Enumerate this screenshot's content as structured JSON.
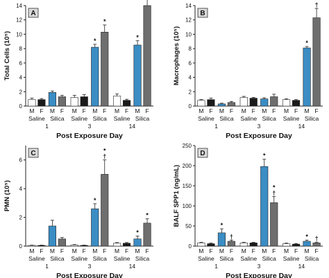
{
  "colors": {
    "saline_m": "#ffffff",
    "saline_f": "#1a1a1a",
    "silica_m": "#3b8dc4",
    "silica_f": "#6e6e6e",
    "axis": "#222222",
    "panel_tag_bg": "#d9d9d9"
  },
  "common": {
    "xlabel": "Post Exposure Day",
    "sex_labels": [
      "M",
      "F",
      "M",
      "F"
    ],
    "group_labels": [
      "Saline",
      "Silica"
    ],
    "days": [
      "1",
      "3",
      "14"
    ]
  },
  "chart_data": [
    {
      "type": "bar",
      "panel": "A",
      "ylabel": "Total Cells (10⁵)",
      "xlabel": "Post Exposure Day",
      "ylim": [
        0,
        14
      ],
      "yticks": [
        "0",
        "2",
        "4",
        "6",
        "8",
        "10",
        "12",
        "14"
      ],
      "categories": [
        "1",
        "3",
        "14"
      ],
      "series": [
        {
          "group": "Saline",
          "sex": "M",
          "values": [
            0.9,
            1.2,
            1.4
          ],
          "errors": [
            0.2,
            0.3,
            0.3
          ],
          "marks": [
            "",
            "",
            ""
          ]
        },
        {
          "group": "Saline",
          "sex": "F",
          "values": [
            0.9,
            1.3,
            0.8
          ],
          "errors": [
            0.15,
            0.3,
            0.15
          ],
          "marks": [
            "",
            "",
            ""
          ]
        },
        {
          "group": "Silica",
          "sex": "M",
          "values": [
            1.9,
            8.2,
            8.5
          ],
          "errors": [
            0.2,
            0.4,
            0.6
          ],
          "marks": [
            "",
            "*",
            "*"
          ]
        },
        {
          "group": "Silica",
          "sex": "F",
          "values": [
            1.3,
            10.3,
            14.0
          ],
          "errors": [
            0.2,
            1.0,
            1.3
          ],
          "marks": [
            "",
            "*",
            "*"
          ]
        }
      ]
    },
    {
      "type": "bar",
      "panel": "B",
      "ylabel": "Macrophages (10⁵)",
      "xlabel": "Post Exposure Day",
      "ylim": [
        0,
        14
      ],
      "yticks": [
        "0",
        "2",
        "4",
        "6",
        "8",
        "10",
        "12",
        "14"
      ],
      "categories": [
        "1",
        "3",
        "14"
      ],
      "series": [
        {
          "group": "Saline",
          "sex": "M",
          "values": [
            0.8,
            1.2,
            0.9
          ],
          "errors": [
            0.1,
            0.15,
            0.1
          ],
          "marks": [
            "",
            "",
            ""
          ]
        },
        {
          "group": "Saline",
          "sex": "F",
          "values": [
            0.9,
            1.1,
            0.8
          ],
          "errors": [
            0.2,
            0.1,
            0.1
          ],
          "marks": [
            "",
            "",
            ""
          ]
        },
        {
          "group": "Silica",
          "sex": "M",
          "values": [
            0.3,
            1.0,
            8.1
          ],
          "errors": [
            0.1,
            0.15,
            0.2
          ],
          "marks": [
            "",
            "",
            "*"
          ]
        },
        {
          "group": "Silica",
          "sex": "F",
          "values": [
            0.5,
            1.3,
            12.3
          ],
          "errors": [
            0.15,
            0.35,
            1.3
          ],
          "marks": [
            "",
            "",
            "*†"
          ]
        }
      ]
    },
    {
      "type": "bar",
      "panel": "C",
      "ylabel": "PMN (10⁵)",
      "xlabel": "Post Exposure Day",
      "ylim": [
        0,
        7
      ],
      "yticks": [
        "0",
        "2",
        "4",
        "6"
      ],
      "categories": [
        "1",
        "3",
        "14"
      ],
      "series": [
        {
          "group": "Saline",
          "sex": "M",
          "values": [
            0.05,
            0.08,
            0.2
          ],
          "errors": [
            0.02,
            0.03,
            0.05
          ],
          "marks": [
            "",
            "",
            ""
          ]
        },
        {
          "group": "Saline",
          "sex": "F",
          "values": [
            0.05,
            0.05,
            0.2
          ],
          "errors": [
            0.02,
            0.02,
            0.05
          ],
          "marks": [
            "",
            "",
            ""
          ]
        },
        {
          "group": "Silica",
          "sex": "M",
          "values": [
            1.4,
            2.6,
            0.5
          ],
          "errors": [
            0.4,
            0.35,
            0.2
          ],
          "marks": [
            "",
            "*",
            "*"
          ]
        },
        {
          "group": "Silica",
          "sex": "F",
          "values": [
            0.5,
            5.0,
            1.6
          ],
          "errors": [
            0.1,
            1.0,
            0.3
          ],
          "marks": [
            "",
            "*†",
            "*"
          ]
        }
      ]
    },
    {
      "type": "bar",
      "panel": "D",
      "ylabel": "BALF SPP1 (ng/mL)",
      "xlabel": "Post Exposure Day",
      "ylim": [
        0,
        250
      ],
      "yticks": [
        "0",
        "50",
        "100",
        "150",
        "200",
        "250"
      ],
      "categories": [
        "1",
        "3",
        "14"
      ],
      "series": [
        {
          "group": "Saline",
          "sex": "M",
          "values": [
            8,
            8,
            6
          ],
          "errors": [
            1.5,
            1.5,
            1.5
          ],
          "marks": [
            "",
            "",
            ""
          ]
        },
        {
          "group": "Saline",
          "sex": "F",
          "values": [
            6,
            8,
            5
          ],
          "errors": [
            1.5,
            1.5,
            1.5
          ],
          "marks": [
            "",
            "",
            ""
          ]
        },
        {
          "group": "Silica",
          "sex": "M",
          "values": [
            33,
            198,
            12
          ],
          "errors": [
            10,
            18,
            3
          ],
          "marks": [
            "*",
            "*",
            "*"
          ]
        },
        {
          "group": "Silica",
          "sex": "F",
          "values": [
            12,
            108,
            8
          ],
          "errors": [
            3,
            15,
            2
          ],
          "marks": [
            "†",
            "*†",
            "†"
          ]
        }
      ]
    }
  ]
}
